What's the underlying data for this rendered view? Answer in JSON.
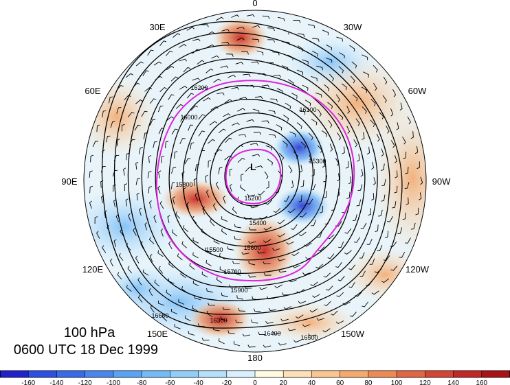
{
  "title": {
    "level": "100 hPa",
    "time": "0600 UTC 18 Dec 1999"
  },
  "longitude_labels": [
    "0",
    "30W",
    "60W",
    "90W",
    "120W",
    "150W",
    "180",
    "150E",
    "120E",
    "90E",
    "60E",
    "30E"
  ],
  "height_contour_labels": [
    "15200",
    "15300",
    "15400",
    "15500",
    "15600",
    "15700",
    "15800",
    "15900",
    "16000",
    "16100",
    "16200",
    "16300",
    "16400",
    "16500",
    "16600"
  ],
  "colorbar": {
    "ticks": [
      "-160",
      "-140",
      "-120",
      "-100",
      "-80",
      "-60",
      "-40",
      "-20",
      "0",
      "20",
      "40",
      "60",
      "80",
      "100",
      "120",
      "140",
      "160"
    ],
    "colors": [
      "#2222cc",
      "#2f4fe0",
      "#3a6ae8",
      "#4a86ee",
      "#5ba2f2",
      "#74baf6",
      "#92cef8",
      "#b4e0fa",
      "#d9f0fc",
      "#fffbe0",
      "#fde0b8",
      "#f9c691",
      "#f4a96e",
      "#ec8a55",
      "#e06645",
      "#d24535",
      "#c02828",
      "#a81414"
    ]
  },
  "colors": {
    "pv_circle": "#e020e0",
    "contour": "#000000"
  }
}
